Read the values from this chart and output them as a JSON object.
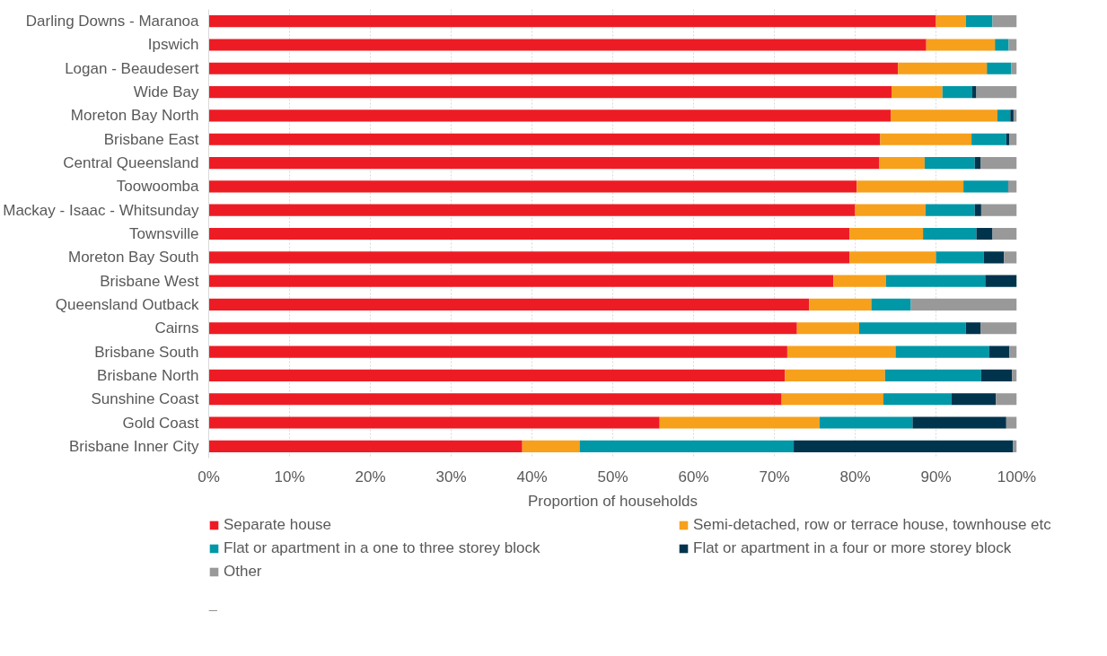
{
  "chart_data": {
    "type": "bar",
    "orientation": "horizontal",
    "stacked": true,
    "xlabel": "Proportion of households",
    "categories": [
      "Darling Downs - Maranoa",
      "Ipswich",
      "Logan - Beaudesert",
      "Wide Bay",
      "Moreton Bay North",
      "Brisbane East",
      "Central Queensland",
      "Toowoomba",
      "Mackay - Isaac - Whitsunday",
      "Townsville",
      "Moreton Bay South",
      "Brisbane West",
      "Queensland Outback",
      "Cairns",
      "Brisbane South",
      "Brisbane North",
      "Sunshine Coast",
      "Gold Coast",
      "Brisbane Inner City"
    ],
    "series": [
      {
        "name": "Separate house",
        "color": "#ed1c24",
        "values": [
          90.0,
          88.8,
          85.3,
          84.5,
          84.4,
          83.1,
          83.0,
          80.2,
          80.0,
          79.3,
          79.3,
          77.3,
          74.3,
          72.8,
          71.6,
          71.3,
          70.9,
          55.8,
          38.8
        ]
      },
      {
        "name": "Semi-detached, row or terrace house, townhouse etc",
        "color": "#f7a01c",
        "values": [
          3.7,
          8.5,
          11.0,
          6.3,
          13.2,
          11.3,
          5.6,
          13.2,
          8.7,
          9.1,
          10.7,
          6.5,
          7.7,
          7.7,
          13.4,
          12.4,
          12.6,
          19.8,
          7.1
        ]
      },
      {
        "name": "Flat or apartment in a one to three storey block",
        "color": "#0097a7",
        "values": [
          3.3,
          1.7,
          3.0,
          3.7,
          1.6,
          4.3,
          6.2,
          5.5,
          6.1,
          6.6,
          5.9,
          12.3,
          4.9,
          13.2,
          11.6,
          11.9,
          8.4,
          11.5,
          26.5
        ]
      },
      {
        "name": "Flat or apartment in a four or more storey block",
        "color": "#00344d",
        "values": [
          0,
          0,
          0,
          0.5,
          0.4,
          0.4,
          0.7,
          0.1,
          0.8,
          2.0,
          2.5,
          3.9,
          0,
          1.8,
          2.5,
          3.8,
          5.5,
          11.6,
          27.1
        ]
      },
      {
        "name": "Other",
        "color": "#999999",
        "values": [
          3.0,
          1.0,
          0.7,
          5.0,
          0.4,
          0.9,
          4.5,
          1.0,
          4.4,
          3.0,
          1.6,
          null,
          13.1,
          4.5,
          0.9,
          0.6,
          2.6,
          1.3,
          0.5
        ]
      }
    ],
    "xlim": [
      0,
      100
    ],
    "xticks": [
      {
        "value": 0,
        "label": "0%"
      },
      {
        "value": 10,
        "label": "10%"
      },
      {
        "value": 20,
        "label": "20%"
      },
      {
        "value": 30,
        "label": "30%"
      },
      {
        "value": 40,
        "label": "40%"
      },
      {
        "value": 50,
        "label": "50%"
      },
      {
        "value": 60,
        "label": "60%"
      },
      {
        "value": 70,
        "label": "70%"
      },
      {
        "value": 80,
        "label": "80%"
      },
      {
        "value": 90,
        "label": "90%"
      },
      {
        "value": 100,
        "label": "100%"
      }
    ],
    "grid": "x",
    "legend": "bottom"
  }
}
